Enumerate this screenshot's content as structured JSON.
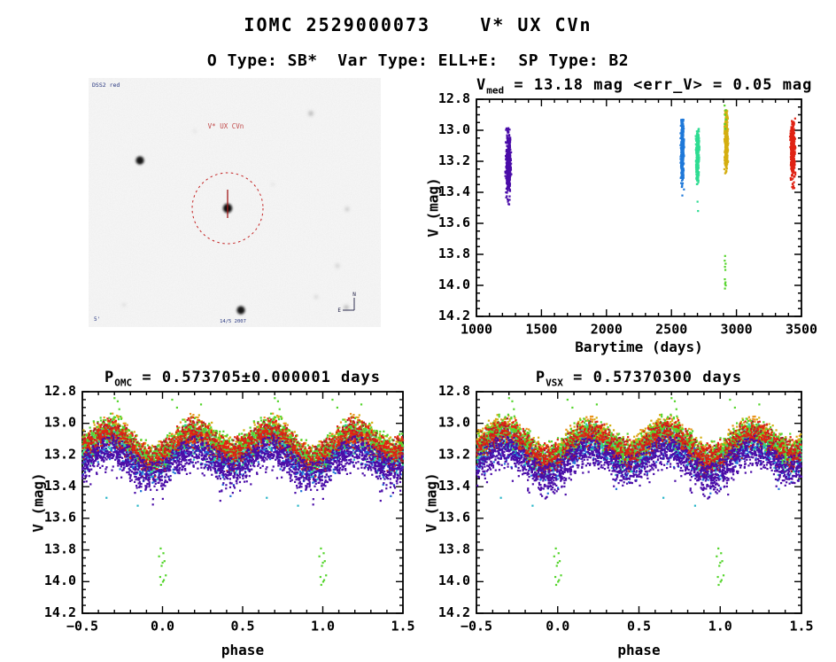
{
  "header": {
    "title": "IOMC 2529000073    V* UX CVn",
    "subtitle": "O Type: SB*  Var Type: ELL+E:  SP Type: B2"
  },
  "finder": {
    "survey_label": "DSS2 red",
    "target_label": "V* UX CVn",
    "bottom_label": "14/5 2007",
    "scale_label": "5'",
    "compass_n": "N",
    "compass_e": "E",
    "circle_color": "#c42222",
    "marker_color": "#a01818",
    "label_color": "#26357f"
  },
  "chart_data": [
    {
      "id": "timeplot",
      "type": "scatter",
      "title_pre": "V",
      "title_sub": "med",
      "title_post": " = 13.18 mag <err_V> = 0.05 mag",
      "xlabel": "Barytime (days)",
      "ylabel": "V (mag)",
      "xlim": [
        1000,
        3500
      ],
      "ylim": [
        12.8,
        14.2
      ],
      "xticks": [
        1000,
        1500,
        2000,
        2500,
        3000,
        3500
      ],
      "xtick_labels": [
        "1000",
        "1500",
        "2000",
        "2500",
        "3000",
        "3500"
      ],
      "x_minor": 100,
      "yticks": [
        12.8,
        13.0,
        13.2,
        13.4,
        13.6,
        13.8,
        14.0,
        14.2
      ],
      "ytick_labels": [
        "12.8",
        "13.0",
        "13.2",
        "13.4",
        "13.6",
        "13.8",
        "14.0",
        "14.2"
      ],
      "y_minor": 0.05,
      "clusters": [
        {
          "name": "epoch-1",
          "color": "#4a0ca8",
          "seed": 101,
          "n": 420,
          "t0": 1246,
          "tsig": 9,
          "tmax": 26,
          "mag": 13.22,
          "sig": 0.1,
          "min": 12.97,
          "max": 13.49,
          "points": []
        },
        {
          "name": "epoch-2",
          "color": "#1e78d9",
          "seed": 102,
          "n": 380,
          "t0": 2583,
          "tsig": 6,
          "tmax": 16,
          "mag": 13.15,
          "sig": 0.1,
          "min": 12.93,
          "max": 13.4,
          "points": [
            [
              2583,
              13.42
            ]
          ]
        },
        {
          "name": "epoch-3",
          "color": "#2edc92",
          "seed": 103,
          "n": 300,
          "t0": 2701,
          "tsig": 6,
          "tmax": 15,
          "mag": 13.15,
          "sig": 0.08,
          "min": 12.99,
          "max": 13.38,
          "points": [
            [
              2700,
              13.46
            ],
            [
              2704,
              13.52
            ]
          ]
        },
        {
          "name": "epoch-4",
          "color": "#d4ae10",
          "seed": 104,
          "n": 450,
          "t0": 2921,
          "tsig": 6,
          "tmax": 15,
          "mag": 13.07,
          "sig": 0.085,
          "min": 12.87,
          "max": 13.31,
          "points": []
        },
        {
          "name": "epoch-4-eclipse",
          "color": "#55d52c",
          "seed": 105,
          "n": 0,
          "t0": 2913,
          "tsig": 0,
          "tmax": 0,
          "mag": 13.0,
          "sig": 0,
          "min": 12.8,
          "max": 14.2,
          "points": [
            [
              2908,
              12.84
            ],
            [
              2916,
              12.87
            ],
            [
              2912,
              12.9
            ],
            [
              2918,
              12.93
            ],
            [
              2910,
              12.96
            ],
            [
              2914,
              12.99
            ],
            [
              2912,
              13.81
            ],
            [
              2909,
              13.84
            ],
            [
              2916,
              13.86
            ],
            [
              2911,
              13.88
            ],
            [
              2914,
              13.9
            ],
            [
              2910,
              13.96
            ],
            [
              2915,
              13.98
            ],
            [
              2912,
              13.99
            ],
            [
              2917,
              14.0
            ],
            [
              2911,
              14.02
            ]
          ]
        },
        {
          "name": "epoch-5",
          "color": "#e02314",
          "seed": 106,
          "n": 380,
          "t0": 3432,
          "tsig": 8,
          "tmax": 22,
          "mag": 13.13,
          "sig": 0.09,
          "min": 12.92,
          "max": 13.38,
          "points": []
        }
      ]
    },
    {
      "id": "pomc",
      "type": "scatter",
      "title_pre": "P",
      "title_sub": "OMC",
      "title_post": " = 0.573705±0.000001 days",
      "xlabel": "phase",
      "ylabel": "V (mag)",
      "xlim": [
        -0.5,
        1.5
      ],
      "ylim": [
        12.8,
        14.2
      ],
      "xticks": [
        -0.5,
        0.0,
        0.5,
        1.0,
        1.5
      ],
      "xtick_labels": [
        "−0.5",
        "0.0",
        "0.5",
        "1.0",
        "1.5"
      ],
      "x_minor": 0.1,
      "yticks": [
        12.8,
        13.0,
        13.2,
        13.4,
        13.6,
        13.8,
        14.0,
        14.2
      ],
      "ytick_labels": [
        "12.8",
        "13.0",
        "13.2",
        "13.4",
        "13.6",
        "13.8",
        "14.0",
        "14.2"
      ],
      "y_minor": 0.05,
      "model": {
        "mean": 13.155,
        "amp2": 0.075,
        "ph2": 0.185,
        "amp1": 0.02,
        "ph1": -0.05,
        "clamp_lo": 12.83,
        "clamp_hi": 13.55,
        "dn": 0.1
      },
      "series": [
        {
          "name": "cyan",
          "color": "#29b6c9",
          "seed": 201,
          "n": 400,
          "off": 0.015,
          "sig": 0.045,
          "up": 0.2
        },
        {
          "name": "blue",
          "color": "#1e6fd9",
          "seed": 202,
          "n": 650,
          "off": 0.04,
          "sig": 0.05,
          "up": 0.24
        },
        {
          "name": "gold",
          "color": "#d4ae10",
          "seed": 203,
          "n": 420,
          "off": -0.05,
          "sig": 0.04,
          "up": 0.13
        },
        {
          "name": "orange",
          "color": "#e9931c",
          "seed": 204,
          "n": 280,
          "off": -0.045,
          "sig": 0.045,
          "up": 0.13
        },
        {
          "name": "sgreen",
          "color": "#2edc92",
          "seed": 205,
          "n": 450,
          "off": 0.0,
          "sig": 0.045,
          "up": 0.15
        },
        {
          "name": "green",
          "color": "#55d52c",
          "seed": 206,
          "n": 600,
          "off": -0.045,
          "sig": 0.04,
          "up": 0.13
        },
        {
          "name": "darkred",
          "color": "#a8192c",
          "seed": 207,
          "n": 300,
          "off": -0.015,
          "sig": 0.05,
          "up": 0.15
        },
        {
          "name": "red",
          "color": "#e02314",
          "seed": 208,
          "n": 550,
          "off": -0.025,
          "sig": 0.045,
          "up": 0.14
        },
        {
          "name": "purple",
          "color": "#4a0ca8",
          "seed": 209,
          "n": 950,
          "off": 0.095,
          "sig": 0.055,
          "up": 0.3
        }
      ],
      "outliers": [
        {
          "color": "#55d52c",
          "mirror": true,
          "points": [
            [
              -0.012,
              13.79
            ],
            [
              0.005,
              13.82
            ],
            [
              -0.022,
              13.84
            ],
            [
              0.012,
              13.87
            ],
            [
              0.0,
              13.88
            ],
            [
              -0.006,
              13.9
            ],
            [
              0.02,
              13.96
            ],
            [
              -0.015,
              13.97
            ],
            [
              0.008,
              13.99
            ],
            [
              0.002,
              14.0
            ],
            [
              -0.01,
              14.02
            ]
          ]
        },
        {
          "color": "#55d52c",
          "mirror": true,
          "points": [
            [
              -0.28,
              12.86
            ],
            [
              0.06,
              12.85
            ],
            [
              0.09,
              12.9
            ],
            [
              0.24,
              12.88
            ],
            [
              0.7,
              12.84
            ],
            [
              0.73,
              12.91
            ]
          ]
        },
        {
          "color": "#29b6c9",
          "mirror": true,
          "points": [
            [
              -0.155,
              13.52
            ],
            [
              -0.35,
              13.47
            ]
          ]
        }
      ]
    },
    {
      "id": "pvsx",
      "type": "scatter",
      "title_pre": "P",
      "title_sub": "VSX",
      "title_post": " = 0.57370300 days",
      "xlabel": "phase",
      "ylabel": "V (mag)",
      "xlim": [
        -0.5,
        1.5
      ],
      "ylim": [
        12.8,
        14.2
      ],
      "xticks": [
        -0.5,
        0.0,
        0.5,
        1.0,
        1.5
      ],
      "xtick_labels": [
        "−0.5",
        "0.0",
        "0.5",
        "1.0",
        "1.5"
      ],
      "x_minor": 0.1,
      "yticks": [
        12.8,
        13.0,
        13.2,
        13.4,
        13.6,
        13.8,
        14.0,
        14.2
      ],
      "ytick_labels": [
        "12.8",
        "13.0",
        "13.2",
        "13.4",
        "13.6",
        "13.8",
        "14.0",
        "14.2"
      ],
      "y_minor": 0.05,
      "series_same_as": 1,
      "seed_shift": 7
    }
  ]
}
